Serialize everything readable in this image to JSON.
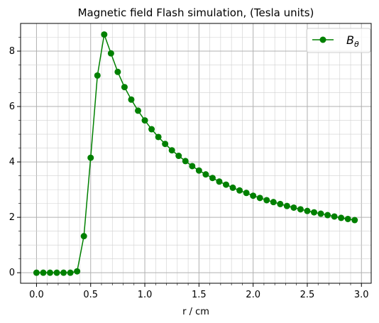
{
  "chart_data": {
    "type": "line",
    "title": "Magnetic field Flash simulation, (Tesla units)",
    "xlabel": "r / cm",
    "ylabel": "",
    "xlim": [
      -0.147,
      3.09
    ],
    "ylim": [
      -0.38,
      9.0
    ],
    "xticks": [
      0.0,
      0.5,
      1.0,
      1.5,
      2.0,
      2.5,
      3.0
    ],
    "xtick_labels": [
      "0.0",
      "0.5",
      "1.0",
      "1.5",
      "2.0",
      "2.5",
      "3.0"
    ],
    "yticks": [
      0,
      2,
      4,
      6,
      8
    ],
    "ytick_labels": [
      "0",
      "2",
      "4",
      "6",
      "8"
    ],
    "grid": "major and minor",
    "legend_position": "top-right",
    "series": [
      {
        "name": "B",
        "name_subscript": "θ",
        "color": "#008000",
        "marker": "circle",
        "x": [
          0.0,
          0.0625,
          0.125,
          0.1875,
          0.25,
          0.3125,
          0.375,
          0.4375,
          0.5,
          0.5625,
          0.625,
          0.6875,
          0.75,
          0.8125,
          0.875,
          0.9375,
          1.0,
          1.0625,
          1.125,
          1.1875,
          1.25,
          1.3125,
          1.375,
          1.4375,
          1.5,
          1.5625,
          1.625,
          1.6875,
          1.75,
          1.8125,
          1.875,
          1.9375,
          2.0,
          2.0625,
          2.125,
          2.1875,
          2.25,
          2.3125,
          2.375,
          2.4375,
          2.5,
          2.5625,
          2.625,
          2.6875,
          2.75,
          2.8125,
          2.875,
          2.9375
        ],
        "y": [
          0.0,
          0.0,
          0.0,
          0.0,
          0.0,
          0.0,
          0.05,
          1.32,
          4.15,
          7.12,
          8.6,
          7.92,
          7.25,
          6.7,
          6.25,
          5.85,
          5.5,
          5.18,
          4.9,
          4.65,
          4.42,
          4.22,
          4.03,
          3.85,
          3.69,
          3.55,
          3.42,
          3.29,
          3.18,
          3.07,
          2.97,
          2.88,
          2.78,
          2.7,
          2.62,
          2.55,
          2.48,
          2.41,
          2.35,
          2.29,
          2.23,
          2.18,
          2.13,
          2.08,
          2.03,
          1.98,
          1.94,
          1.9
        ]
      }
    ]
  }
}
